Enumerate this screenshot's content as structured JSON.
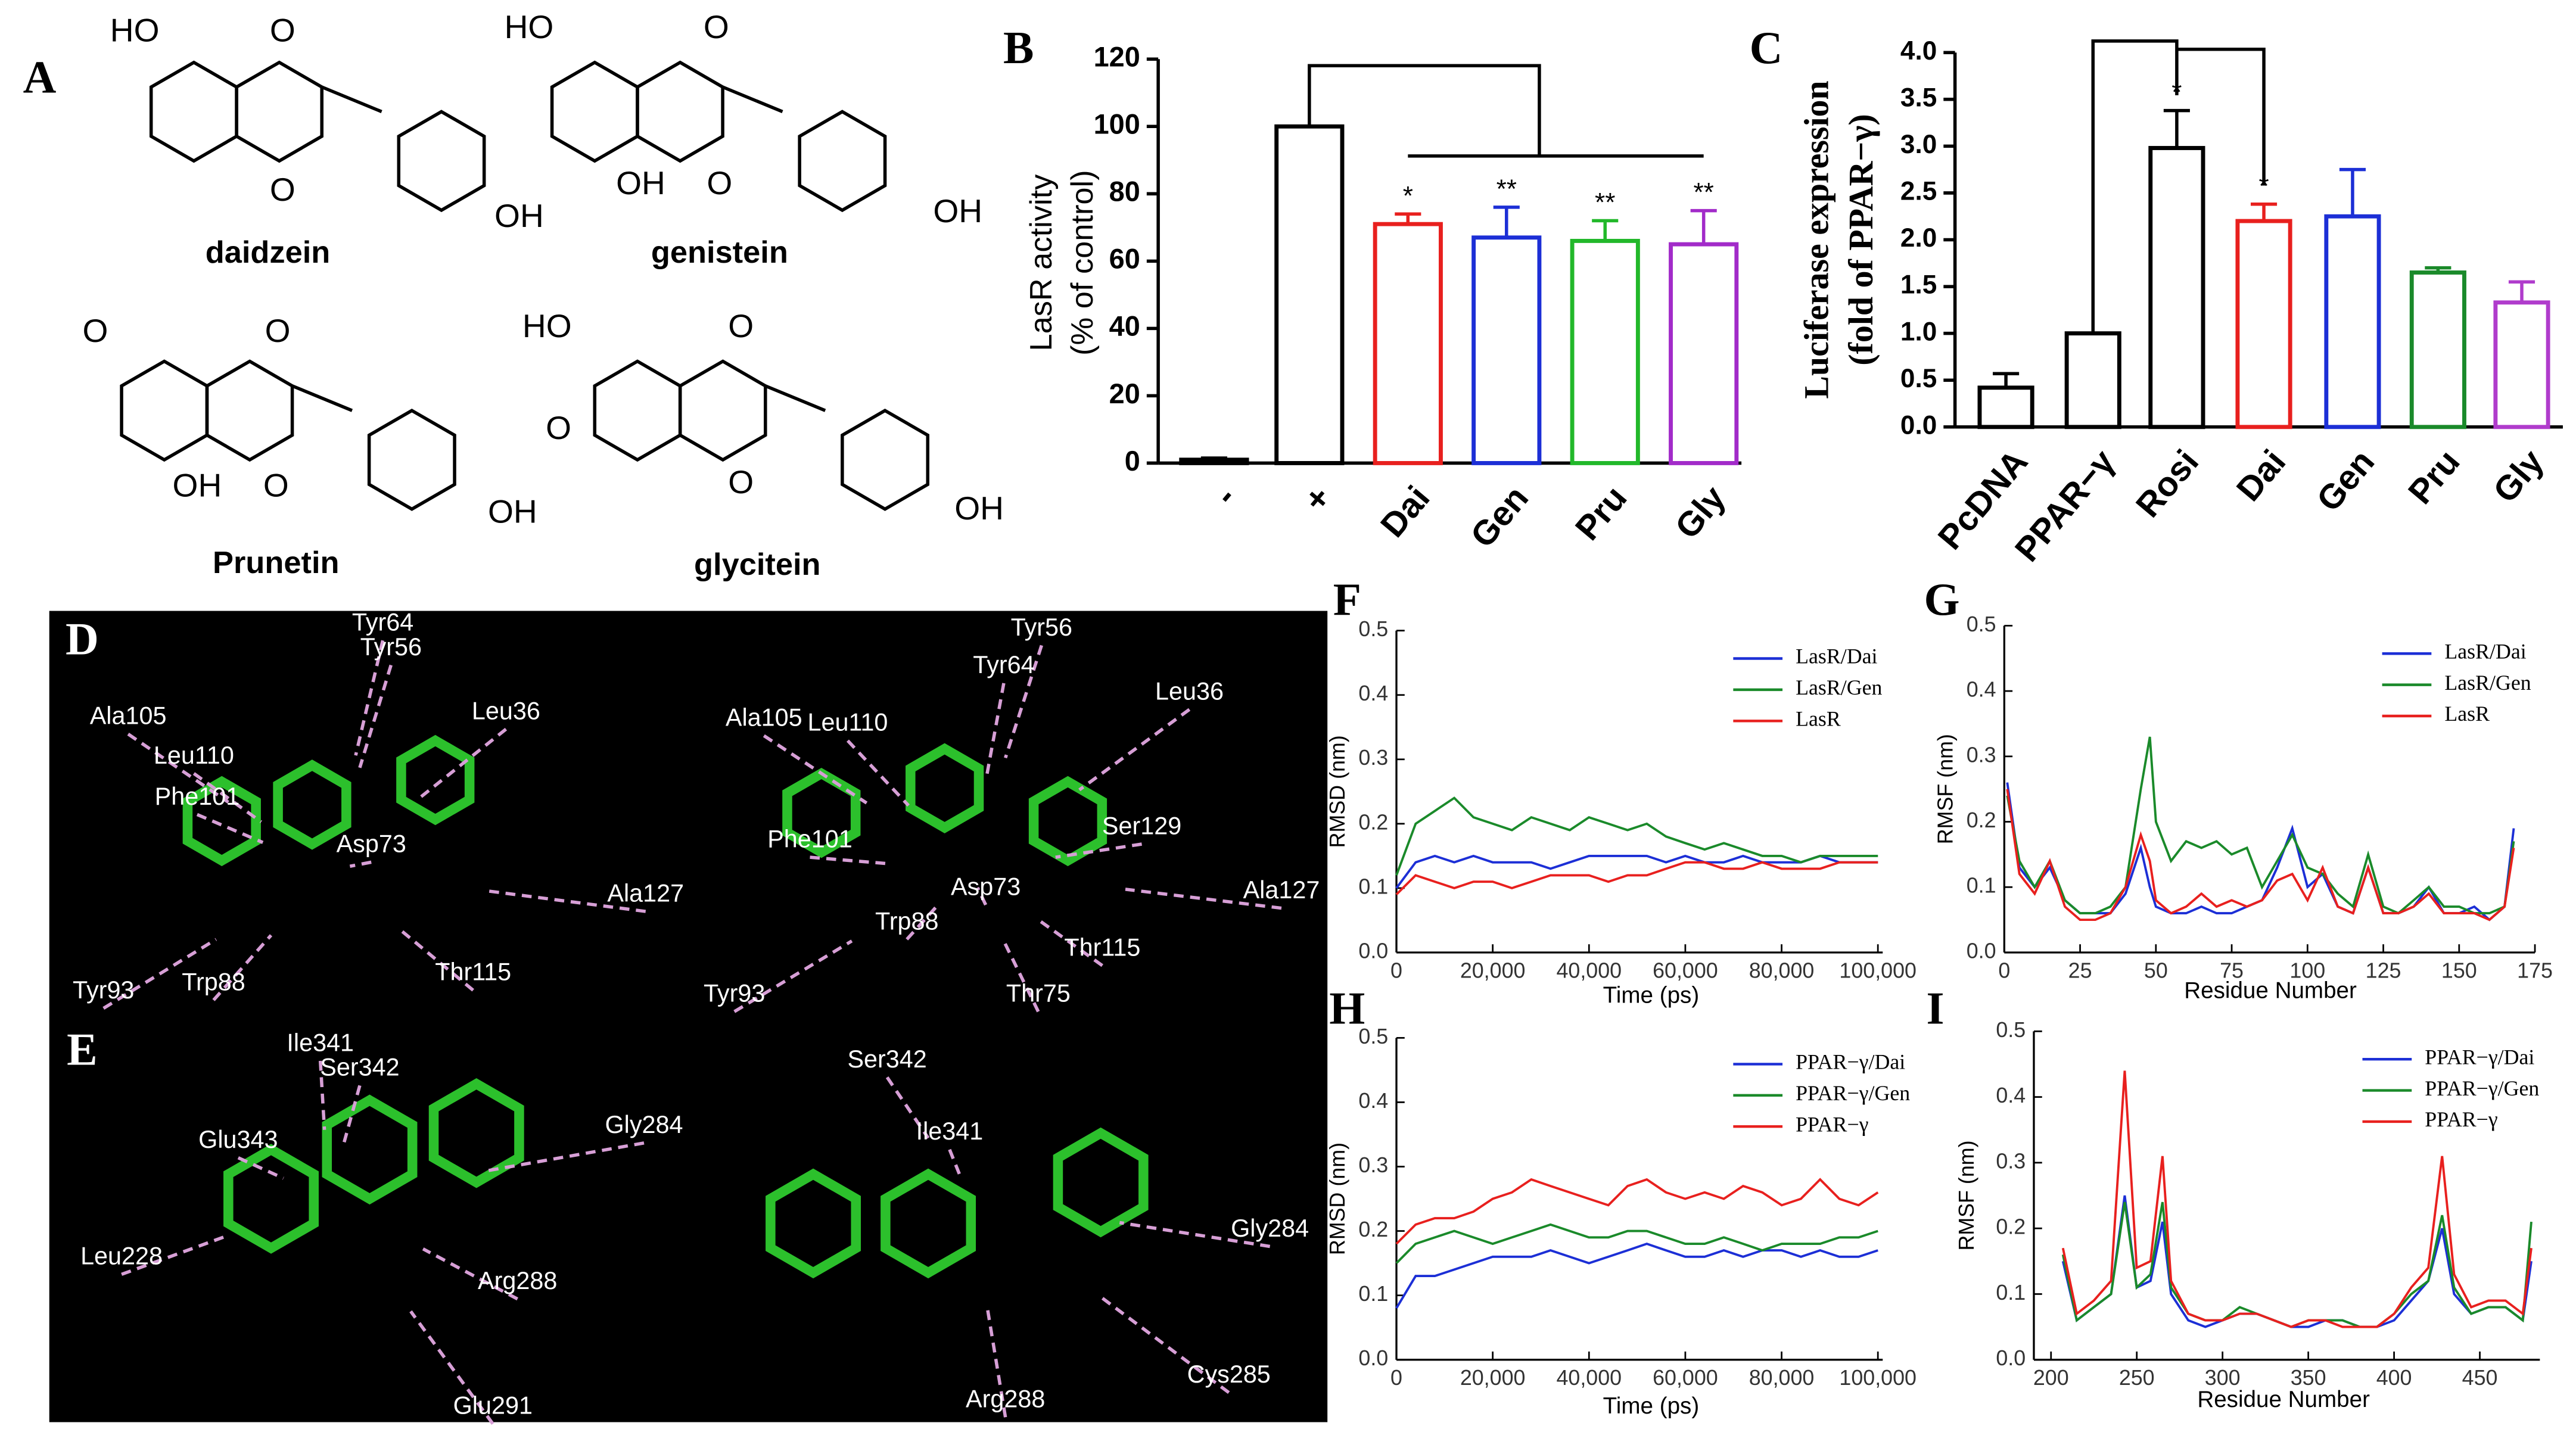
{
  "structures": {
    "panel": "A",
    "molecules": [
      {
        "name": "daidzein",
        "atoms": [
          "HO",
          "O",
          "O",
          "OH"
        ]
      },
      {
        "name": "genistein",
        "atoms": [
          "HO",
          "O",
          "OH",
          "O",
          "OH"
        ]
      },
      {
        "name": "Prunetin",
        "atoms": [
          "O",
          "O",
          "OH",
          "O",
          "OH"
        ]
      },
      {
        "name": "glycitein",
        "atoms": [
          "HO",
          "O",
          "O",
          "O",
          "OH"
        ]
      }
    ]
  },
  "docking": [
    {
      "panel": "D",
      "left": [
        "Tyr64",
        "Tyr56",
        "Ala105",
        "Leu36",
        "Leu110",
        "Phe101",
        "Asp73",
        "Ala127",
        "Tyr93",
        "Trp88",
        "Thr115"
      ],
      "right": [
        "Tyr56",
        "Tyr64",
        "Leu36",
        "Ala105",
        "Leu110",
        "Ser129",
        "Phe101",
        "Asp73",
        "Ala127",
        "Trp88",
        "Thr115",
        "Tyr93",
        "Thr75"
      ]
    },
    {
      "panel": "E",
      "left": [
        "Ile341",
        "Ser342",
        "Gly284",
        "Glu343",
        "Leu228",
        "Arg288",
        "Glu291"
      ],
      "right": [
        "Ser342",
        "Ile341",
        "Gly284",
        "Cys285",
        "Arg288"
      ]
    }
  ],
  "chart_data": [
    {
      "type": "bar",
      "panel": "B",
      "ylabel": [
        "LasR activity",
        "(% of control)"
      ],
      "categories": [
        "-",
        "+",
        "Dai",
        "Gen",
        "Pru",
        "Gly"
      ],
      "values": [
        1,
        100,
        71,
        67,
        66,
        65
      ],
      "errors": [
        0.5,
        0,
        3,
        9,
        6,
        10
      ],
      "significance": [
        null,
        null,
        "*",
        "**",
        "**",
        "**"
      ],
      "colors": [
        "#000000",
        "#000000",
        "#e8201e",
        "#1c2fd6",
        "#22b82a",
        "#a22bc9"
      ],
      "ylim": [
        0,
        120
      ],
      "yticks": [
        0,
        20,
        40,
        60,
        80,
        100,
        120
      ]
    },
    {
      "type": "bar",
      "panel": "C",
      "ylabel": [
        "Luciferase expression",
        "(fold of PPAR−γ)"
      ],
      "categories": [
        "PcDNA",
        "PPAR−γ",
        "Rosi",
        "Dai",
        "Gen",
        "Pru",
        "Gly"
      ],
      "values": [
        0.42,
        1.0,
        2.98,
        2.2,
        2.25,
        1.65,
        1.33
      ],
      "errors": [
        0.15,
        0,
        0.4,
        0.18,
        0.5,
        0.05,
        0.22
      ],
      "significance": [
        null,
        null,
        "*",
        "*",
        null,
        null,
        null
      ],
      "colors": [
        "#000000",
        "#000000",
        "#000000",
        "#e8201e",
        "#1c2fd6",
        "#1a8a2a",
        "#b03ccc"
      ],
      "ylim": [
        0,
        4
      ],
      "yticks": [
        {
          "value": 0,
          "label": "0.0"
        },
        0.5,
        {
          "value": 1,
          "label": "1.0"
        },
        1.5,
        {
          "value": 2,
          "label": "2.0"
        },
        2.5,
        {
          "value": 3,
          "label": "3.0"
        },
        3.5,
        {
          "value": 4,
          "label": "4.0"
        }
      ]
    },
    {
      "type": "line",
      "panel": "F",
      "xlabel": "Time (ps)",
      "ylabel": "RMSD (nm)",
      "legend": "upper right",
      "x": [
        0,
        4000,
        8000,
        12000,
        16000,
        20000,
        24000,
        28000,
        32000,
        36000,
        40000,
        44000,
        48000,
        52000,
        56000,
        60000,
        64000,
        68000,
        72000,
        76000,
        80000,
        84000,
        88000,
        92000,
        96000,
        100000
      ],
      "series": [
        {
          "name": "LasR/Dai",
          "color": "#1c2fd6",
          "values": [
            0.1,
            0.14,
            0.15,
            0.14,
            0.15,
            0.14,
            0.14,
            0.14,
            0.13,
            0.14,
            0.15,
            0.15,
            0.15,
            0.15,
            0.14,
            0.15,
            0.14,
            0.14,
            0.15,
            0.14,
            0.14,
            0.14,
            0.15,
            0.14,
            0.14,
            0.14
          ]
        },
        {
          "name": "LasR/Gen",
          "color": "#1a8a2a",
          "values": [
            0.12,
            0.2,
            0.22,
            0.24,
            0.21,
            0.2,
            0.19,
            0.21,
            0.2,
            0.19,
            0.21,
            0.2,
            0.19,
            0.2,
            0.18,
            0.17,
            0.16,
            0.17,
            0.16,
            0.15,
            0.15,
            0.14,
            0.15,
            0.15,
            0.15,
            0.15
          ]
        },
        {
          "name": "LasR",
          "color": "#e8201e",
          "values": [
            0.09,
            0.12,
            0.11,
            0.1,
            0.11,
            0.11,
            0.1,
            0.11,
            0.12,
            0.12,
            0.12,
            0.11,
            0.12,
            0.12,
            0.13,
            0.14,
            0.14,
            0.13,
            0.13,
            0.14,
            0.13,
            0.13,
            0.13,
            0.14,
            0.14,
            0.14
          ]
        }
      ],
      "xlim": [
        0,
        101000
      ],
      "xticks": [
        0,
        {
          "value": 20000,
          "label": "20,000"
        },
        {
          "value": 40000,
          "label": "40,000"
        },
        {
          "value": 60000,
          "label": "60,000"
        },
        {
          "value": 80000,
          "label": "80,000"
        },
        {
          "value": 100000,
          "label": "100,000"
        }
      ],
      "ylim": [
        0,
        0.5
      ],
      "yticks": [
        {
          "value": 0,
          "label": "0.0"
        },
        0.1,
        0.2,
        0.3,
        0.4,
        0.5
      ]
    },
    {
      "type": "line",
      "panel": "G",
      "xlabel": "Residue Number",
      "ylabel": "RMSF (nm)",
      "legend": "upper right",
      "x": [
        1,
        5,
        10,
        15,
        20,
        25,
        30,
        35,
        40,
        45,
        48,
        50,
        55,
        60,
        65,
        70,
        75,
        80,
        85,
        90,
        95,
        100,
        105,
        110,
        115,
        120,
        125,
        130,
        135,
        140,
        145,
        150,
        155,
        160,
        165,
        168
      ],
      "series": [
        {
          "name": "LasR/Dai",
          "color": "#1c2fd6",
          "values": [
            0.26,
            0.13,
            0.1,
            0.13,
            0.08,
            0.06,
            0.06,
            0.06,
            0.09,
            0.16,
            0.1,
            0.07,
            0.06,
            0.06,
            0.07,
            0.06,
            0.06,
            0.07,
            0.08,
            0.13,
            0.19,
            0.1,
            0.12,
            0.07,
            0.06,
            0.13,
            0.06,
            0.06,
            0.07,
            0.1,
            0.06,
            0.06,
            0.07,
            0.05,
            0.07,
            0.19
          ]
        },
        {
          "name": "LasR/Gen",
          "color": "#1a8a2a",
          "values": [
            0.24,
            0.14,
            0.1,
            0.14,
            0.08,
            0.06,
            0.06,
            0.07,
            0.1,
            0.25,
            0.33,
            0.2,
            0.14,
            0.17,
            0.16,
            0.17,
            0.15,
            0.16,
            0.1,
            0.14,
            0.18,
            0.13,
            0.12,
            0.09,
            0.07,
            0.15,
            0.07,
            0.06,
            0.08,
            0.1,
            0.07,
            0.07,
            0.06,
            0.06,
            0.07,
            0.17
          ]
        },
        {
          "name": "LasR",
          "color": "#e8201e",
          "values": [
            0.25,
            0.12,
            0.09,
            0.14,
            0.07,
            0.05,
            0.05,
            0.06,
            0.1,
            0.18,
            0.14,
            0.08,
            0.06,
            0.07,
            0.09,
            0.07,
            0.08,
            0.07,
            0.08,
            0.11,
            0.12,
            0.08,
            0.13,
            0.07,
            0.06,
            0.13,
            0.06,
            0.06,
            0.07,
            0.09,
            0.06,
            0.06,
            0.06,
            0.05,
            0.07,
            0.16
          ]
        }
      ],
      "xlim": [
        0,
        175
      ],
      "xticks": [
        0,
        25,
        50,
        75,
        100,
        125,
        150,
        175
      ],
      "ylim": [
        0,
        0.5
      ],
      "yticks": [
        {
          "value": 0,
          "label": "0.0"
        },
        0.1,
        0.2,
        0.3,
        0.4,
        0.5
      ]
    },
    {
      "type": "line",
      "panel": "H",
      "xlabel": "Time (ps)",
      "ylabel": "RMSD (nm)",
      "legend": "upper right",
      "x": [
        0,
        4000,
        8000,
        12000,
        16000,
        20000,
        24000,
        28000,
        32000,
        36000,
        40000,
        44000,
        48000,
        52000,
        56000,
        60000,
        64000,
        68000,
        72000,
        76000,
        80000,
        84000,
        88000,
        92000,
        96000,
        100000
      ],
      "series": [
        {
          "name": "PPAR−γ/Dai",
          "color": "#1c2fd6",
          "values": [
            0.08,
            0.13,
            0.13,
            0.14,
            0.15,
            0.16,
            0.16,
            0.16,
            0.17,
            0.16,
            0.15,
            0.16,
            0.17,
            0.18,
            0.17,
            0.16,
            0.16,
            0.17,
            0.16,
            0.17,
            0.17,
            0.16,
            0.17,
            0.16,
            0.16,
            0.17
          ]
        },
        {
          "name": "PPAR−γ/Gen",
          "color": "#1a8a2a",
          "values": [
            0.15,
            0.18,
            0.19,
            0.2,
            0.19,
            0.18,
            0.19,
            0.2,
            0.21,
            0.2,
            0.19,
            0.19,
            0.2,
            0.2,
            0.19,
            0.18,
            0.18,
            0.19,
            0.18,
            0.17,
            0.18,
            0.18,
            0.18,
            0.19,
            0.19,
            0.2
          ]
        },
        {
          "name": "PPAR−γ",
          "color": "#e8201e",
          "values": [
            0.18,
            0.21,
            0.22,
            0.22,
            0.23,
            0.25,
            0.26,
            0.28,
            0.27,
            0.26,
            0.25,
            0.24,
            0.27,
            0.28,
            0.26,
            0.25,
            0.26,
            0.25,
            0.27,
            0.26,
            0.24,
            0.25,
            0.28,
            0.25,
            0.24,
            0.26
          ]
        }
      ],
      "xlim": [
        0,
        101000
      ],
      "xticks": [
        0,
        {
          "value": 20000,
          "label": "20,000"
        },
        {
          "value": 40000,
          "label": "40,000"
        },
        {
          "value": 60000,
          "label": "60,000"
        },
        {
          "value": 80000,
          "label": "80,000"
        },
        {
          "value": 100000,
          "label": "100,000"
        }
      ],
      "ylim": [
        0,
        0.5
      ],
      "yticks": [
        {
          "value": 0,
          "label": "0.0"
        },
        0.1,
        0.2,
        0.3,
        0.4,
        0.5
      ]
    },
    {
      "type": "line",
      "panel": "I",
      "xlabel": "Residue Number",
      "ylabel": "RMSF (nm)",
      "legend": "upper right",
      "x": [
        207,
        215,
        225,
        235,
        243,
        250,
        258,
        265,
        270,
        280,
        290,
        300,
        310,
        320,
        330,
        340,
        350,
        360,
        370,
        380,
        390,
        400,
        410,
        420,
        428,
        435,
        445,
        455,
        465,
        475,
        480
      ],
      "series": [
        {
          "name": "PPAR−γ/Dai",
          "color": "#1c2fd6",
          "values": [
            0.15,
            0.06,
            0.08,
            0.1,
            0.25,
            0.11,
            0.12,
            0.21,
            0.1,
            0.06,
            0.05,
            0.06,
            0.07,
            0.07,
            0.06,
            0.05,
            0.05,
            0.06,
            0.06,
            0.05,
            0.05,
            0.06,
            0.09,
            0.12,
            0.2,
            0.1,
            0.07,
            0.08,
            0.08,
            0.06,
            0.15
          ]
        },
        {
          "name": "PPAR−γ/Gen",
          "color": "#1a8a2a",
          "values": [
            0.16,
            0.06,
            0.08,
            0.1,
            0.24,
            0.11,
            0.13,
            0.24,
            0.11,
            0.07,
            0.06,
            0.06,
            0.08,
            0.07,
            0.06,
            0.05,
            0.06,
            0.06,
            0.06,
            0.05,
            0.05,
            0.07,
            0.1,
            0.12,
            0.22,
            0.11,
            0.07,
            0.08,
            0.08,
            0.06,
            0.21
          ]
        },
        {
          "name": "PPAR−γ",
          "color": "#e8201e",
          "values": [
            0.17,
            0.07,
            0.09,
            0.12,
            0.44,
            0.14,
            0.15,
            0.31,
            0.12,
            0.07,
            0.06,
            0.06,
            0.07,
            0.07,
            0.06,
            0.05,
            0.06,
            0.06,
            0.05,
            0.05,
            0.05,
            0.07,
            0.11,
            0.14,
            0.31,
            0.13,
            0.08,
            0.09,
            0.09,
            0.07,
            0.17
          ]
        }
      ],
      "xlim": [
        190,
        485
      ],
      "xticks": [
        200,
        250,
        300,
        350,
        400,
        450
      ],
      "ylim": [
        0,
        0.5
      ],
      "yticks": [
        {
          "value": 0,
          "label": "0.0"
        },
        0.1,
        0.2,
        0.3,
        0.4,
        0.5
      ]
    }
  ]
}
